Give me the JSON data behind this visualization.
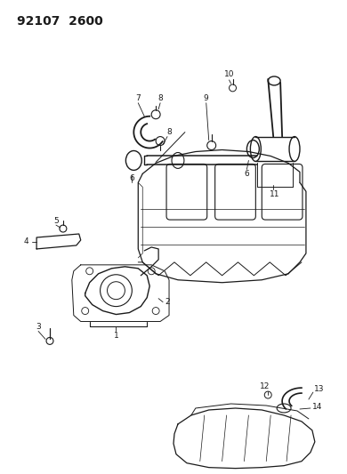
{
  "title": "92107 2600",
  "bg": "#ffffff",
  "lc": "#1a1a1a",
  "fig_w": 3.9,
  "fig_h": 5.33,
  "dpi": 100,
  "title_fontsize": 11,
  "label_fontsize": 6.5
}
